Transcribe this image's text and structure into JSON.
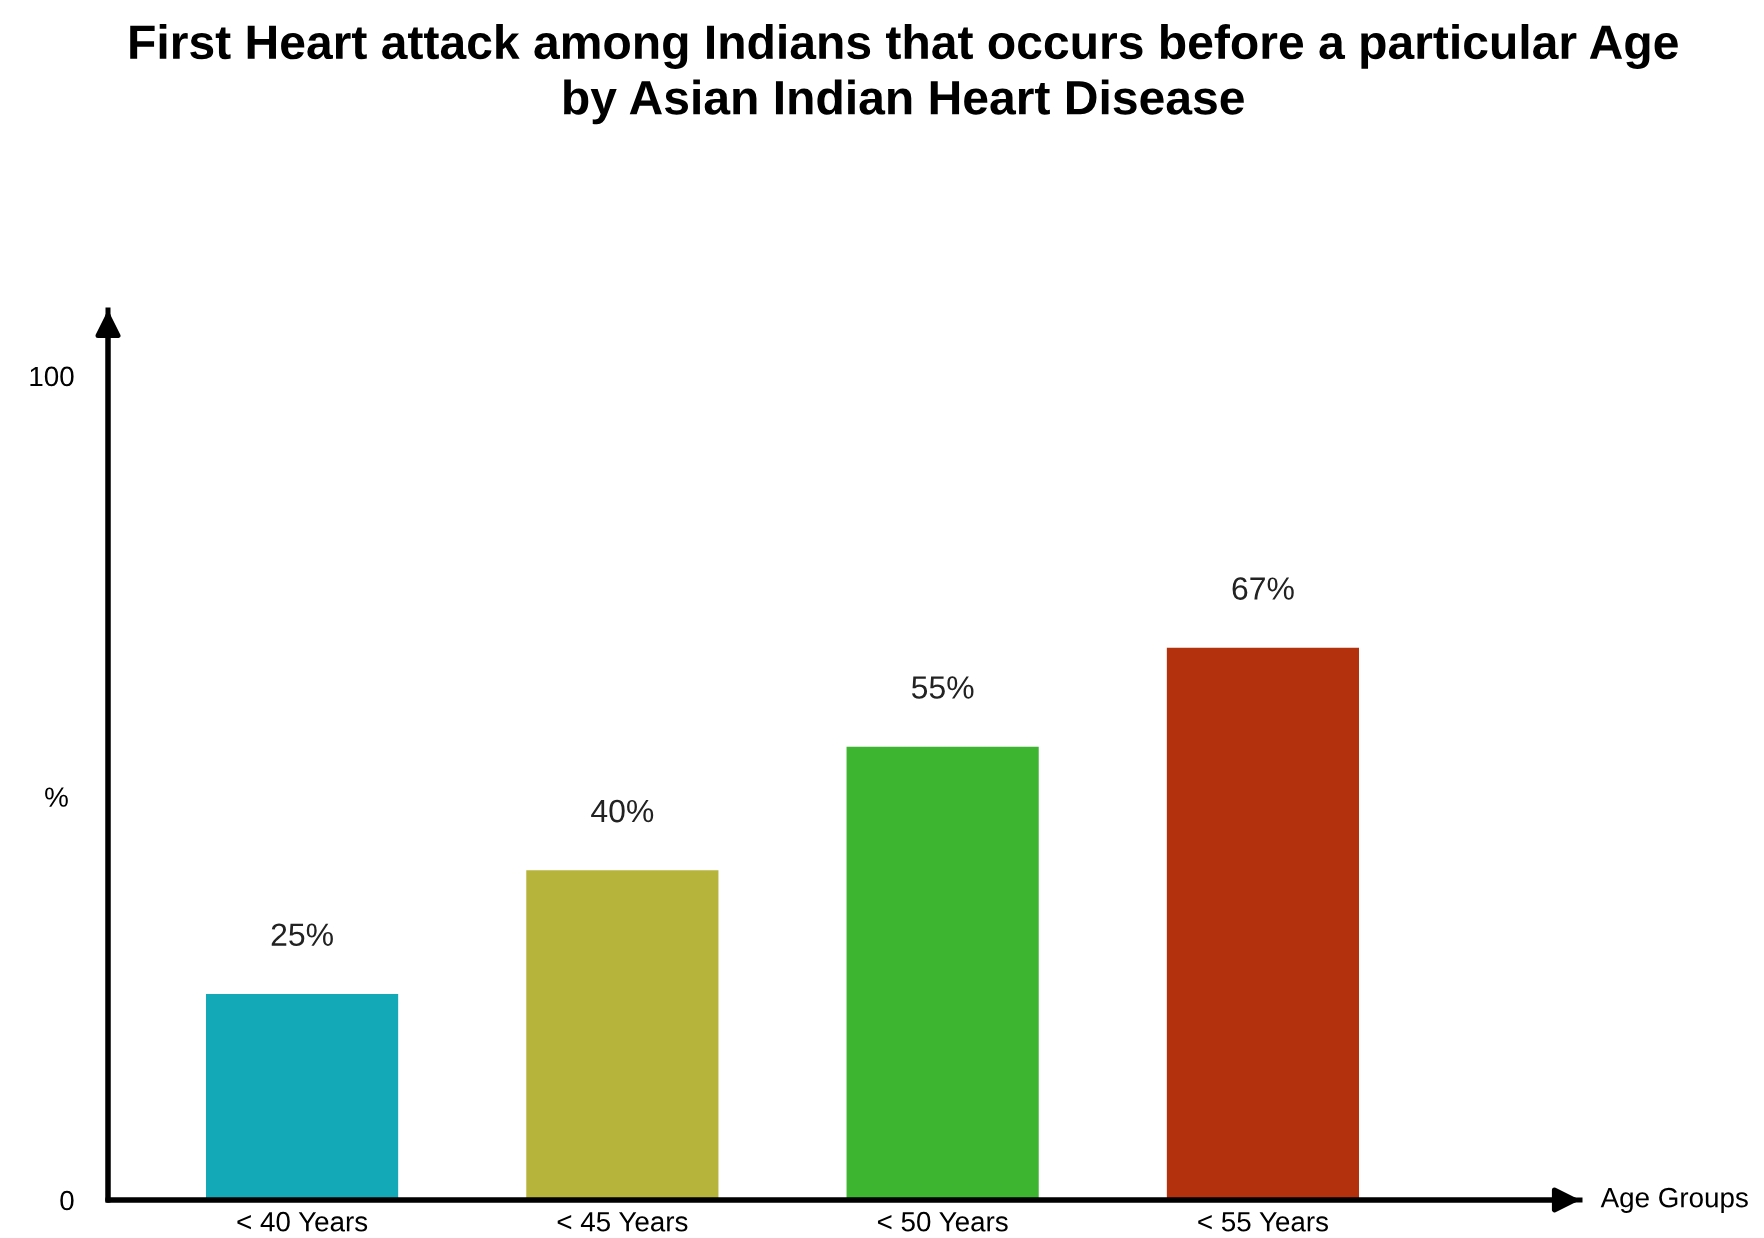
{
  "chart_data": {
    "type": "bar",
    "title": "First Heart attack among Indians that occurs before a particular Age\nby Asian Indian Heart Disease",
    "xlabel": "Age Groups",
    "ylabel": "%",
    "categories": [
      "< 40 Years",
      "< 45 Years",
      "< 50 Years",
      "< 55 Years"
    ],
    "values": [
      25,
      40,
      55,
      67
    ],
    "colors": [
      "#14a9b7",
      "#b6b43a",
      "#3db531",
      "#b3320d"
    ],
    "value_labels": [
      "25%",
      "40%",
      "55%",
      "67%"
    ],
    "ylim": [
      0,
      108
    ],
    "yticks": [
      0,
      100
    ]
  }
}
